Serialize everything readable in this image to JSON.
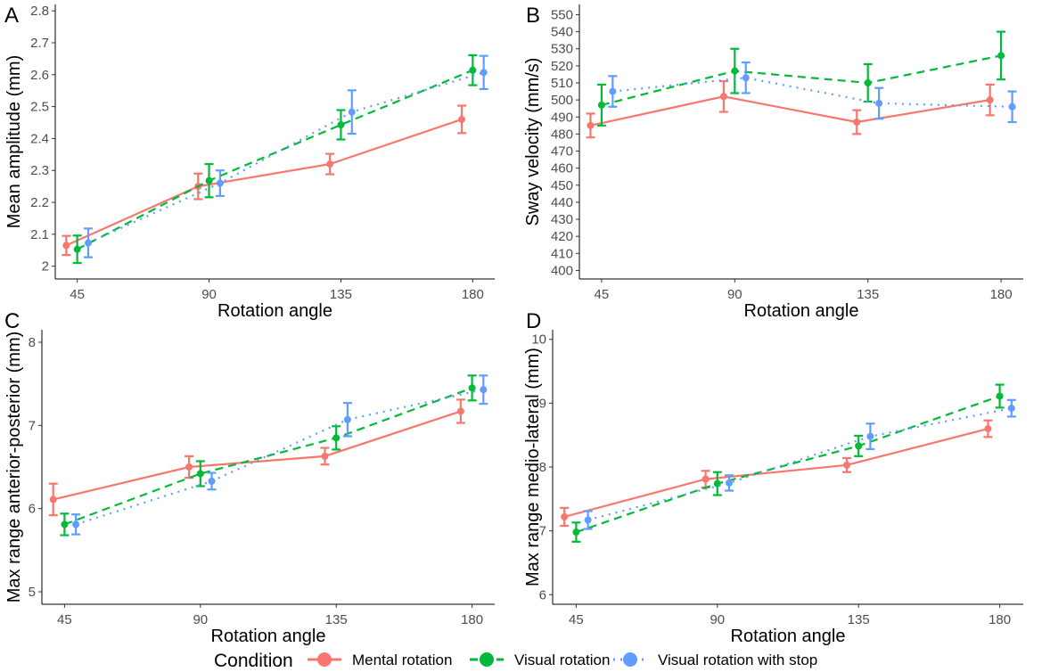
{
  "chart_data": [
    {
      "panel": "A",
      "type": "line",
      "xlabel": "Rotation angle",
      "ylabel": "Mean amplitude (mm)",
      "categories": [
        "45",
        "90",
        "135",
        "180"
      ],
      "ylim": [
        1.96,
        2.82
      ],
      "yticks": [
        "2",
        "2.1",
        "2.2",
        "2.3",
        "2.4",
        "2.5",
        "2.6",
        "2.7",
        "2.8"
      ],
      "series": [
        {
          "name": "Mental rotation",
          "values": [
            2.065,
            2.25,
            2.32,
            2.46
          ],
          "err": [
            0.03,
            0.04,
            0.032,
            0.043
          ]
        },
        {
          "name": "Visual rotation",
          "values": [
            2.053,
            2.268,
            2.443,
            2.614
          ],
          "err": [
            0.043,
            0.052,
            0.046,
            0.047
          ]
        },
        {
          "name": "Visual rotation with stop",
          "values": [
            2.073,
            2.26,
            2.483,
            2.607
          ],
          "err": [
            0.045,
            0.04,
            0.068,
            0.052
          ]
        }
      ]
    },
    {
      "panel": "B",
      "type": "line",
      "xlabel": "Rotation angle",
      "ylabel": "Sway velocity (mm/s)",
      "categories": [
        "45",
        "90",
        "135",
        "180"
      ],
      "ylim": [
        395,
        556
      ],
      "yticks": [
        "400",
        "410",
        "420",
        "430",
        "440",
        "450",
        "460",
        "470",
        "480",
        "490",
        "500",
        "510",
        "520",
        "530",
        "540",
        "550"
      ],
      "series": [
        {
          "name": "Mental rotation",
          "values": [
            485,
            502,
            487,
            500
          ],
          "err": [
            7,
            9,
            7,
            9
          ]
        },
        {
          "name": "Visual rotation",
          "values": [
            497,
            517,
            510,
            526
          ],
          "err": [
            12,
            13,
            11,
            14
          ]
        },
        {
          "name": "Visual rotation with stop",
          "values": [
            505,
            513,
            498,
            496
          ],
          "err": [
            9,
            9,
            9,
            9
          ]
        }
      ]
    },
    {
      "panel": "C",
      "type": "line",
      "xlabel": "Rotation angle",
      "ylabel": "Max range anterior-posterior (mm)",
      "categories": [
        "45",
        "90",
        "135",
        "180"
      ],
      "ylim": [
        4.85,
        8.15
      ],
      "yticks": [
        "5",
        "6",
        "7",
        "8"
      ],
      "series": [
        {
          "name": "Mental rotation",
          "values": [
            6.11,
            6.5,
            6.63,
            7.17
          ],
          "err": [
            0.19,
            0.13,
            0.1,
            0.14
          ]
        },
        {
          "name": "Visual rotation",
          "values": [
            5.81,
            6.42,
            6.85,
            7.45
          ],
          "err": [
            0.13,
            0.15,
            0.14,
            0.15
          ]
        },
        {
          "name": "Visual rotation with stop",
          "values": [
            5.81,
            6.33,
            7.07,
            7.43
          ],
          "err": [
            0.12,
            0.1,
            0.2,
            0.17
          ]
        }
      ]
    },
    {
      "panel": "D",
      "type": "line",
      "xlabel": "Rotation angle",
      "ylabel": "Max range medio-lateral (mm)",
      "categories": [
        "45",
        "90",
        "135",
        "180"
      ],
      "ylim": [
        5.85,
        10.15
      ],
      "yticks": [
        "6",
        "7",
        "8",
        "9",
        "10"
      ],
      "series": [
        {
          "name": "Mental rotation",
          "values": [
            7.22,
            7.81,
            8.03,
            8.6
          ],
          "err": [
            0.14,
            0.13,
            0.11,
            0.13
          ]
        },
        {
          "name": "Visual rotation",
          "values": [
            6.98,
            7.74,
            8.33,
            9.11
          ],
          "err": [
            0.15,
            0.18,
            0.16,
            0.18
          ]
        },
        {
          "name": "Visual rotation with stop",
          "values": [
            7.17,
            7.75,
            8.48,
            8.92
          ],
          "err": [
            0.14,
            0.12,
            0.2,
            0.13
          ]
        }
      ]
    }
  ],
  "legend": {
    "title": "Condition",
    "items": [
      {
        "label": "Mental rotation",
        "color": "#F8766D",
        "dash": "solid"
      },
      {
        "label": "Visual rotation",
        "color": "#00BA38",
        "dash": "dashed"
      },
      {
        "label": "Visual rotation with stop",
        "color": "#619CFF",
        "dash": "dotted"
      }
    ]
  }
}
